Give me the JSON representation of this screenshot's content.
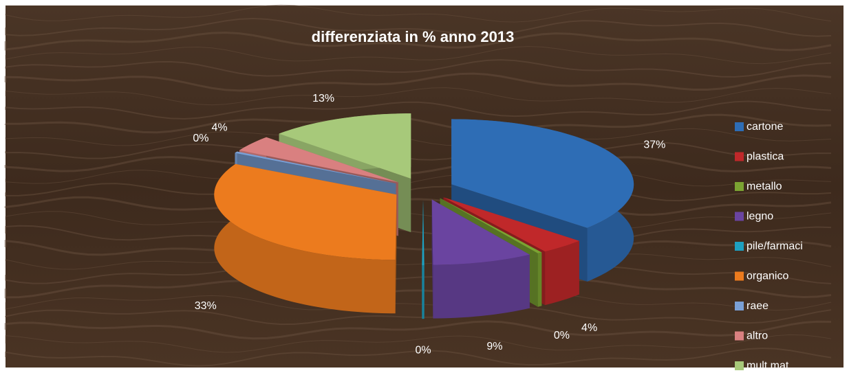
{
  "chart_data": {
    "type": "pie3d",
    "title": "differenziata in % anno 2013",
    "categories": [
      "cartone",
      "plastica",
      "metallo",
      "legno",
      "pile/farmaci",
      "organico",
      "raee",
      "altro",
      "mult.mat."
    ],
    "values": [
      37,
      4,
      0.4,
      9,
      0.2,
      33,
      0.4,
      4,
      13
    ],
    "value_labels": [
      "37%",
      "4%",
      "0%",
      "9%",
      "0%",
      "33%",
      "0%",
      "4%",
      "13%"
    ],
    "colors": [
      "#2e6db5",
      "#c0282a",
      "#7ba332",
      "#6a44a0",
      "#1ea0c0",
      "#ec7b1e",
      "#7aa0d6",
      "#d98080",
      "#a7c97a"
    ],
    "legend": "right"
  }
}
